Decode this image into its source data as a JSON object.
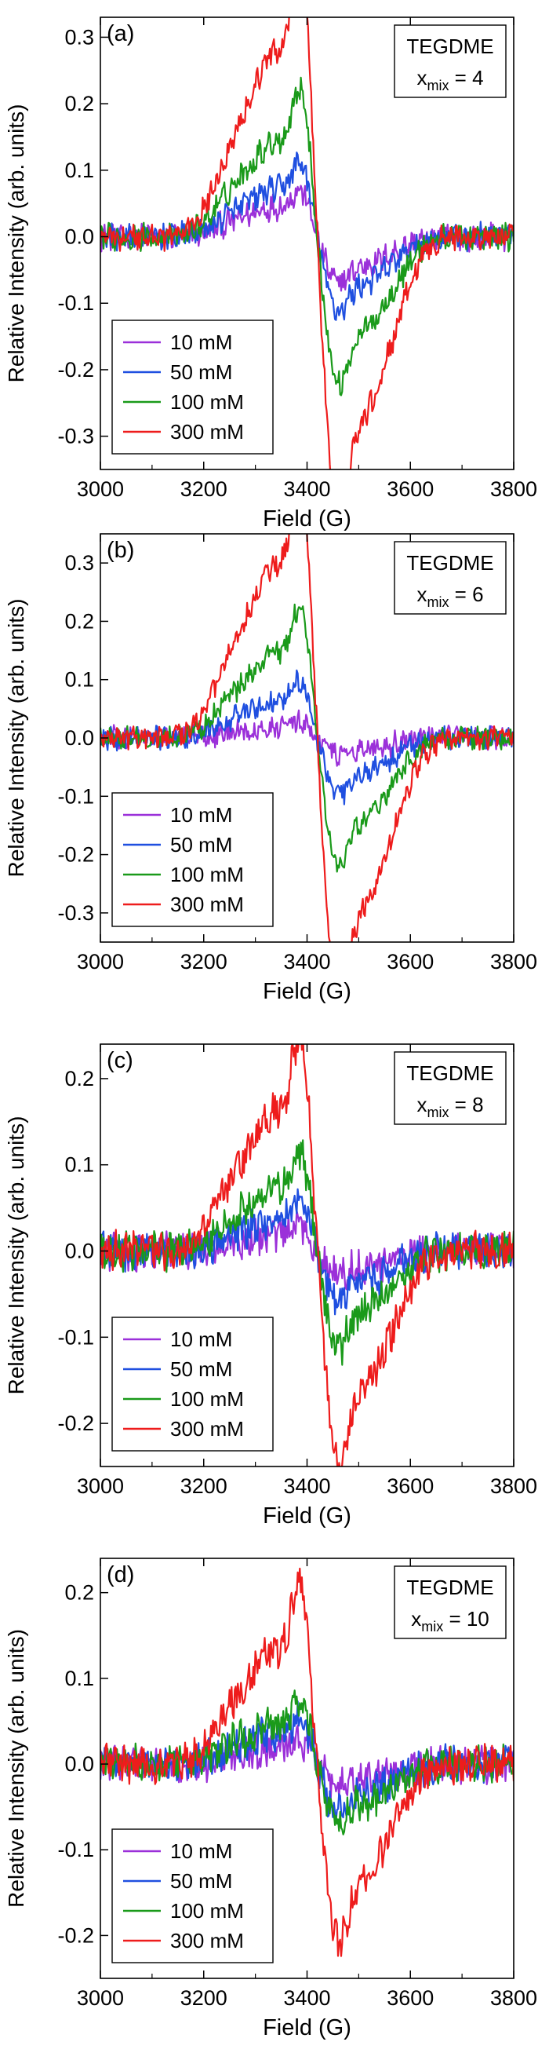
{
  "chart_data": [
    {
      "type": "line",
      "panel": "(a)",
      "box_title": "TEGDME",
      "box_var": "x",
      "box_sub": "mix",
      "box_value": " = 4",
      "xlabel": "Field (G)",
      "ylabel": "Relative Intensity (arb. units)",
      "xlim": [
        3000,
        3800
      ],
      "ylim": [
        -0.35,
        0.33
      ],
      "xticks": [
        3000,
        3200,
        3400,
        3600,
        3800
      ],
      "yticks": [
        -0.3,
        -0.2,
        -0.1,
        0.0,
        0.1,
        0.2,
        0.3
      ],
      "ytick_labels": [
        "-0.3",
        "-0.2",
        "-0.1",
        "0.0",
        "0.1",
        "0.2",
        "0.3"
      ],
      "legend_position": "lower-left",
      "noise": 0.012,
      "series": [
        {
          "name": "10 mM",
          "color": "#9b30d9",
          "amp": 0.05
        },
        {
          "name": "50 mM",
          "color": "#1f4fe0",
          "amp": 0.08
        },
        {
          "name": "100 mM",
          "color": "#1a9a1a",
          "amp": 0.16
        },
        {
          "name": "300 mM",
          "color": "#ee1c1c",
          "amp": 0.31
        }
      ]
    },
    {
      "type": "line",
      "panel": "(b)",
      "box_title": "TEGDME",
      "box_var": "x",
      "box_sub": "mix",
      "box_value": " = 6",
      "xlabel": "Field (G)",
      "ylabel": "Relative Intensity (arb. units)",
      "xlim": [
        3000,
        3800
      ],
      "ylim": [
        -0.35,
        0.35
      ],
      "xticks": [
        3000,
        3200,
        3400,
        3600,
        3800
      ],
      "yticks": [
        -0.3,
        -0.2,
        -0.1,
        0.0,
        0.1,
        0.2,
        0.3
      ],
      "ytick_labels": [
        "-0.3",
        "-0.2",
        "-0.1",
        "0.0",
        "0.1",
        "0.2",
        "0.3"
      ],
      "legend_position": "lower-left",
      "noise": 0.012,
      "series": [
        {
          "name": "10 mM",
          "color": "#9b30d9",
          "amp": 0.02
        },
        {
          "name": "50 mM",
          "color": "#1f4fe0",
          "amp": 0.07
        },
        {
          "name": "100 mM",
          "color": "#1a9a1a",
          "amp": 0.16
        },
        {
          "name": "300 mM",
          "color": "#ee1c1c",
          "amp": 0.33
        }
      ]
    },
    {
      "type": "line",
      "panel": "(c)",
      "box_title": "TEGDME",
      "box_var": "x",
      "box_sub": "mix",
      "box_value": " = 8",
      "xlabel": "Field (G)",
      "ylabel": "Relative Intensity (arb. units)",
      "xlim": [
        3000,
        3800
      ],
      "ylim": [
        -0.25,
        0.24
      ],
      "xticks": [
        3000,
        3200,
        3400,
        3600,
        3800
      ],
      "yticks": [
        -0.2,
        -0.1,
        0.0,
        0.1,
        0.2
      ],
      "ytick_labels": [
        "-0.2",
        "-0.1",
        "0.0",
        "0.1",
        "0.2"
      ],
      "legend_position": "lower-left",
      "noise": 0.013,
      "series": [
        {
          "name": "10 mM",
          "color": "#9b30d9",
          "amp": 0.02
        },
        {
          "name": "50 mM",
          "color": "#1f4fe0",
          "amp": 0.04
        },
        {
          "name": "100 mM",
          "color": "#1a9a1a",
          "amp": 0.08
        },
        {
          "name": "300 mM",
          "color": "#ee1c1c",
          "amp": 0.18
        }
      ]
    },
    {
      "type": "line",
      "panel": "(d)",
      "box_title": "TEGDME",
      "box_var": "x",
      "box_sub": "mix",
      "box_value": " = 10",
      "xlabel": "Field (G)",
      "ylabel": "Relative Intensity (arb. units)",
      "xlim": [
        3000,
        3800
      ],
      "ylim": [
        -0.25,
        0.24
      ],
      "xticks": [
        3000,
        3200,
        3400,
        3600,
        3800
      ],
      "yticks": [
        -0.2,
        -0.1,
        0.0,
        0.1,
        0.2
      ],
      "ytick_labels": [
        "-0.2",
        "-0.1",
        "0.0",
        "0.1",
        "0.2"
      ],
      "legend_position": "lower-left",
      "noise": 0.013,
      "series": [
        {
          "name": "10 mM",
          "color": "#9b30d9",
          "amp": 0.02
        },
        {
          "name": "50 mM",
          "color": "#1f4fe0",
          "amp": 0.04
        },
        {
          "name": "100 mM",
          "color": "#1a9a1a",
          "amp": 0.05
        },
        {
          "name": "300 mM",
          "color": "#ee1c1c",
          "amp": 0.15
        }
      ]
    }
  ]
}
